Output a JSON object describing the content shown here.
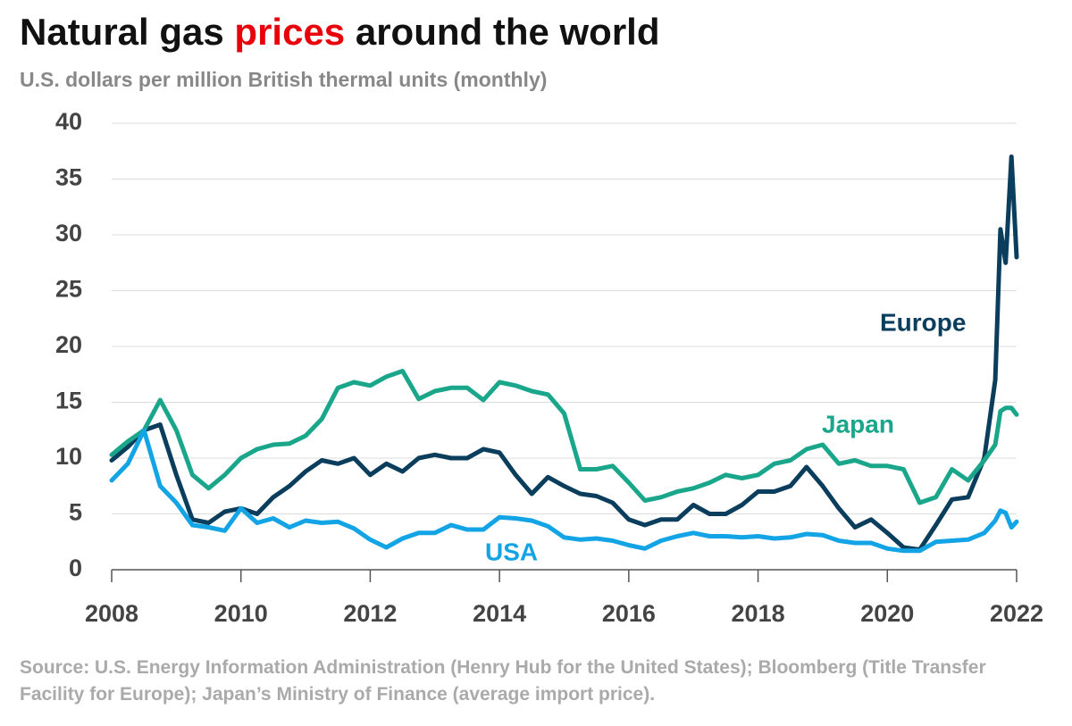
{
  "chart_data": {
    "type": "line",
    "title": [
      "Natural gas",
      "prices",
      "around the world"
    ],
    "title_highlight_color": "#e8000b",
    "subtitle": "U.S. dollars per million British thermal units (monthly)",
    "source": "Source: U.S. Energy Information Administration (Henry Hub for the United States); Bloomberg (Title Transfer Facility for Europe); Japan’s Ministry of Finance (average import price).",
    "x": [
      2008,
      2008.25,
      2008.5,
      2008.75,
      2009,
      2009.25,
      2009.5,
      2009.75,
      2010,
      2010.25,
      2010.5,
      2010.75,
      2011,
      2011.25,
      2011.5,
      2011.75,
      2012,
      2012.25,
      2012.5,
      2012.75,
      2013,
      2013.25,
      2013.5,
      2013.75,
      2014,
      2014.25,
      2014.5,
      2014.75,
      2015,
      2015.25,
      2015.5,
      2015.75,
      2016,
      2016.25,
      2016.5,
      2016.75,
      2017,
      2017.25,
      2017.5,
      2017.75,
      2018,
      2018.25,
      2018.5,
      2018.75,
      2019,
      2019.25,
      2019.5,
      2019.75,
      2020,
      2020.25,
      2020.5,
      2020.75,
      2021,
      2021.25,
      2021.5,
      2021.67,
      2021.75,
      2021.83,
      2021.92,
      2022
    ],
    "series": [
      {
        "name": "Europe",
        "color": "#0b3d5c",
        "values": [
          9.8,
          11,
          12.5,
          13,
          8.5,
          4.5,
          4.2,
          5.2,
          5.5,
          5,
          6.5,
          7.5,
          8.8,
          9.8,
          9.5,
          10,
          8.5,
          9.5,
          8.8,
          10,
          10.3,
          10,
          10,
          10.8,
          10.5,
          8.5,
          6.8,
          8.3,
          7.5,
          6.8,
          6.6,
          6,
          4.5,
          4,
          4.5,
          4.5,
          5.8,
          5,
          5,
          5.8,
          7,
          7,
          7.5,
          9.2,
          7.5,
          5.5,
          3.8,
          4.5,
          3.3,
          2,
          1.8,
          4,
          6.3,
          6.5,
          10,
          17,
          30.5,
          27.5,
          37,
          28
        ]
      },
      {
        "name": "Japan",
        "color": "#1aa68a",
        "values": [
          10.3,
          11.5,
          12.5,
          15.2,
          12.5,
          8.5,
          7.3,
          8.5,
          10,
          10.8,
          11.2,
          11.3,
          12,
          13.5,
          16.3,
          16.8,
          16.5,
          17.3,
          17.8,
          15.3,
          16,
          16.3,
          16.3,
          15.2,
          16.8,
          16.5,
          16,
          15.7,
          14,
          9,
          9,
          9.3,
          7.8,
          6.2,
          6.5,
          7,
          7.3,
          7.8,
          8.5,
          8.2,
          8.5,
          9.5,
          9.8,
          10.8,
          11.2,
          9.5,
          9.8,
          9.3,
          9.3,
          9,
          6,
          6.5,
          9,
          8,
          9.8,
          11.2,
          14.2,
          14.5,
          14.5,
          13.9
        ]
      },
      {
        "name": "USA",
        "color": "#13a4e6",
        "values": [
          8,
          9.5,
          12.5,
          7.5,
          6,
          4,
          3.8,
          3.5,
          5.5,
          4.2,
          4.6,
          3.8,
          4.4,
          4.2,
          4.3,
          3.7,
          2.7,
          2,
          2.8,
          3.3,
          3.3,
          4,
          3.6,
          3.6,
          4.7,
          4.6,
          4.4,
          3.9,
          2.9,
          2.7,
          2.8,
          2.6,
          2.2,
          1.9,
          2.6,
          3,
          3.3,
          3,
          3,
          2.9,
          3,
          2.8,
          2.9,
          3.2,
          3.1,
          2.6,
          2.4,
          2.4,
          1.9,
          1.7,
          1.7,
          2.5,
          2.6,
          2.7,
          3.3,
          4.4,
          5.3,
          5.1,
          3.8,
          4.3
        ]
      }
    ],
    "xlim": [
      2008,
      2022
    ],
    "xticks": [
      2008,
      2010,
      2012,
      2014,
      2016,
      2018,
      2020,
      2022
    ],
    "ylim": [
      0,
      40
    ],
    "yticks": [
      0,
      5,
      10,
      15,
      20,
      25,
      30,
      35,
      40
    ],
    "grid": true
  }
}
